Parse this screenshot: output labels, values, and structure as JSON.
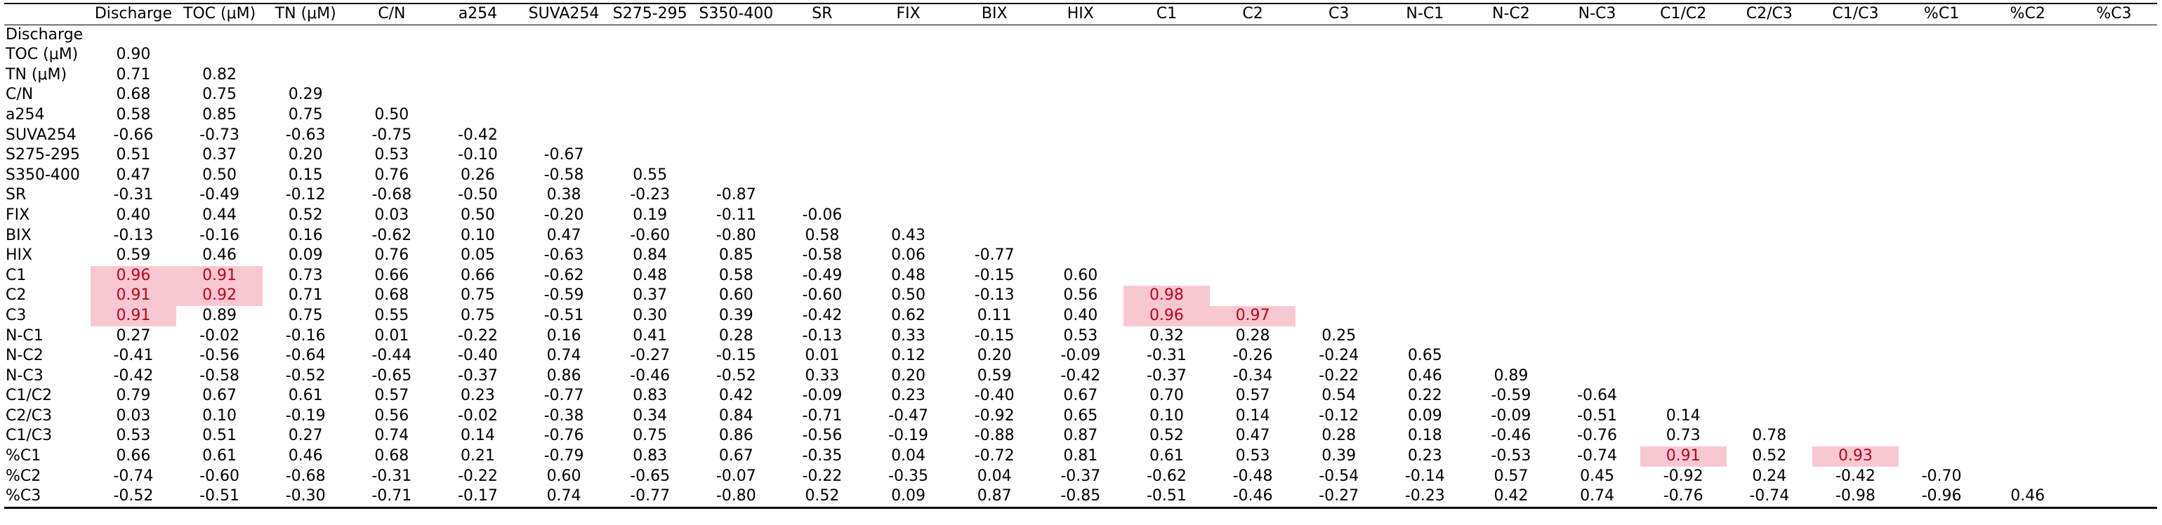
{
  "table": {
    "columns": [
      "Discharge",
      "TOC (μM)",
      "TN (μM)",
      "C/N",
      "a254",
      "SUVA254",
      "S275-295",
      "S350-400",
      "SR",
      "FIX",
      "BIX",
      "HIX",
      "C1",
      "C2",
      "C3",
      "N-C1",
      "N-C2",
      "N-C3",
      "C1/C2",
      "C2/C3",
      "C1/C3",
      "%C1",
      "%C2",
      "%C3"
    ],
    "rows": [
      {
        "label": "Discharge",
        "values": []
      },
      {
        "label": "TOC (μM)",
        "values": [
          "0.90"
        ]
      },
      {
        "label": "TN (μM)",
        "values": [
          "0.71",
          "0.82"
        ]
      },
      {
        "label": "C/N",
        "values": [
          "0.68",
          "0.75",
          "0.29"
        ]
      },
      {
        "label": "a254",
        "values": [
          "0.58",
          "0.85",
          "0.75",
          "0.50"
        ]
      },
      {
        "label": "SUVA254",
        "values": [
          "-0.66",
          "-0.73",
          "-0.63",
          "-0.75",
          "-0.42"
        ]
      },
      {
        "label": "S275-295",
        "values": [
          "0.51",
          "0.37",
          "0.20",
          "0.53",
          "-0.10",
          "-0.67"
        ]
      },
      {
        "label": "S350-400",
        "values": [
          "0.47",
          "0.50",
          "0.15",
          "0.76",
          "0.26",
          "-0.58",
          "0.55"
        ]
      },
      {
        "label": "SR",
        "values": [
          "-0.31",
          "-0.49",
          "-0.12",
          "-0.68",
          "-0.50",
          "0.38",
          "-0.23",
          "-0.87"
        ]
      },
      {
        "label": "FIX",
        "values": [
          "0.40",
          "0.44",
          "0.52",
          "0.03",
          "0.50",
          "-0.20",
          "0.19",
          "-0.11",
          "-0.06"
        ]
      },
      {
        "label": "BIX",
        "values": [
          "-0.13",
          "-0.16",
          "0.16",
          "-0.62",
          "0.10",
          "0.47",
          "-0.60",
          "-0.80",
          "0.58",
          "0.43"
        ]
      },
      {
        "label": "HIX",
        "values": [
          "0.59",
          "0.46",
          "0.09",
          "0.76",
          "0.05",
          "-0.63",
          "0.84",
          "0.85",
          "-0.58",
          "0.06",
          "-0.77"
        ]
      },
      {
        "label": "C1",
        "values": [
          "0.96",
          "0.91",
          "0.73",
          "0.66",
          "0.66",
          "-0.62",
          "0.48",
          "0.58",
          "-0.49",
          "0.48",
          "-0.15",
          "0.60"
        ]
      },
      {
        "label": "C2",
        "values": [
          "0.91",
          "0.92",
          "0.71",
          "0.68",
          "0.75",
          "-0.59",
          "0.37",
          "0.60",
          "-0.60",
          "0.50",
          "-0.13",
          "0.56",
          "0.98"
        ]
      },
      {
        "label": "C3",
        "values": [
          "0.91",
          "0.89",
          "0.75",
          "0.55",
          "0.75",
          "-0.51",
          "0.30",
          "0.39",
          "-0.42",
          "0.62",
          "0.11",
          "0.40",
          "0.96",
          "0.97"
        ]
      },
      {
        "label": "N-C1",
        "values": [
          "0.27",
          "-0.02",
          "-0.16",
          "0.01",
          "-0.22",
          "0.16",
          "0.41",
          "0.28",
          "-0.13",
          "0.33",
          "-0.15",
          "0.53",
          "0.32",
          "0.28",
          "0.25"
        ]
      },
      {
        "label": "N-C2",
        "values": [
          "-0.41",
          "-0.56",
          "-0.64",
          "-0.44",
          "-0.40",
          "0.74",
          "-0.27",
          "-0.15",
          "0.01",
          "0.12",
          "0.20",
          "-0.09",
          "-0.31",
          "-0.26",
          "-0.24",
          "0.65"
        ]
      },
      {
        "label": "N-C3",
        "values": [
          "-0.42",
          "-0.58",
          "-0.52",
          "-0.65",
          "-0.37",
          "0.86",
          "-0.46",
          "-0.52",
          "0.33",
          "0.20",
          "0.59",
          "-0.42",
          "-0.37",
          "-0.34",
          "-0.22",
          "0.46",
          "0.89"
        ]
      },
      {
        "label": "C1/C2",
        "values": [
          "0.79",
          "0.67",
          "0.61",
          "0.57",
          "0.23",
          "-0.77",
          "0.83",
          "0.42",
          "-0.09",
          "0.23",
          "-0.40",
          "0.67",
          "0.70",
          "0.57",
          "0.54",
          "0.22",
          "-0.59",
          "-0.64"
        ]
      },
      {
        "label": "C2/C3",
        "values": [
          "0.03",
          "0.10",
          "-0.19",
          "0.56",
          "-0.02",
          "-0.38",
          "0.34",
          "0.84",
          "-0.71",
          "-0.47",
          "-0.92",
          "0.65",
          "0.10",
          "0.14",
          "-0.12",
          "0.09",
          "-0.09",
          "-0.51",
          "0.14"
        ]
      },
      {
        "label": "C1/C3",
        "values": [
          "0.53",
          "0.51",
          "0.27",
          "0.74",
          "0.14",
          "-0.76",
          "0.75",
          "0.86",
          "-0.56",
          "-0.19",
          "-0.88",
          "0.87",
          "0.52",
          "0.47",
          "0.28",
          "0.18",
          "-0.46",
          "-0.76",
          "0.73",
          "0.78"
        ]
      },
      {
        "label": "%C1",
        "values": [
          "0.66",
          "0.61",
          "0.46",
          "0.68",
          "0.21",
          "-0.79",
          "0.83",
          "0.67",
          "-0.35",
          "0.04",
          "-0.72",
          "0.81",
          "0.61",
          "0.53",
          "0.39",
          "0.23",
          "-0.53",
          "-0.74",
          "0.91",
          "0.52",
          "0.93"
        ]
      },
      {
        "label": "%C2",
        "values": [
          "-0.74",
          "-0.60",
          "-0.68",
          "-0.31",
          "-0.22",
          "0.60",
          "-0.65",
          "-0.07",
          "-0.22",
          "-0.35",
          "0.04",
          "-0.37",
          "-0.62",
          "-0.48",
          "-0.54",
          "-0.14",
          "0.57",
          "0.45",
          "-0.92",
          "0.24",
          "-0.42",
          "-0.70"
        ]
      },
      {
        "label": "%C3",
        "values": [
          "-0.52",
          "-0.51",
          "-0.30",
          "-0.71",
          "-0.17",
          "0.74",
          "-0.77",
          "-0.80",
          "0.52",
          "0.09",
          "0.87",
          "-0.85",
          "-0.51",
          "-0.46",
          "-0.27",
          "-0.23",
          "0.42",
          "0.74",
          "-0.76",
          "-0.74",
          "-0.98",
          "-0.96",
          "0.46"
        ]
      }
    ],
    "highlight_color": "#f8c8d2",
    "highlight_text_color": "#c0001a",
    "highlighted_cells": [
      [
        12,
        0
      ],
      [
        12,
        1
      ],
      [
        13,
        0
      ],
      [
        13,
        1
      ],
      [
        14,
        0
      ],
      [
        13,
        12
      ],
      [
        14,
        12
      ],
      [
        14,
        13
      ],
      [
        21,
        18
      ],
      [
        21,
        20
      ]
    ]
  }
}
